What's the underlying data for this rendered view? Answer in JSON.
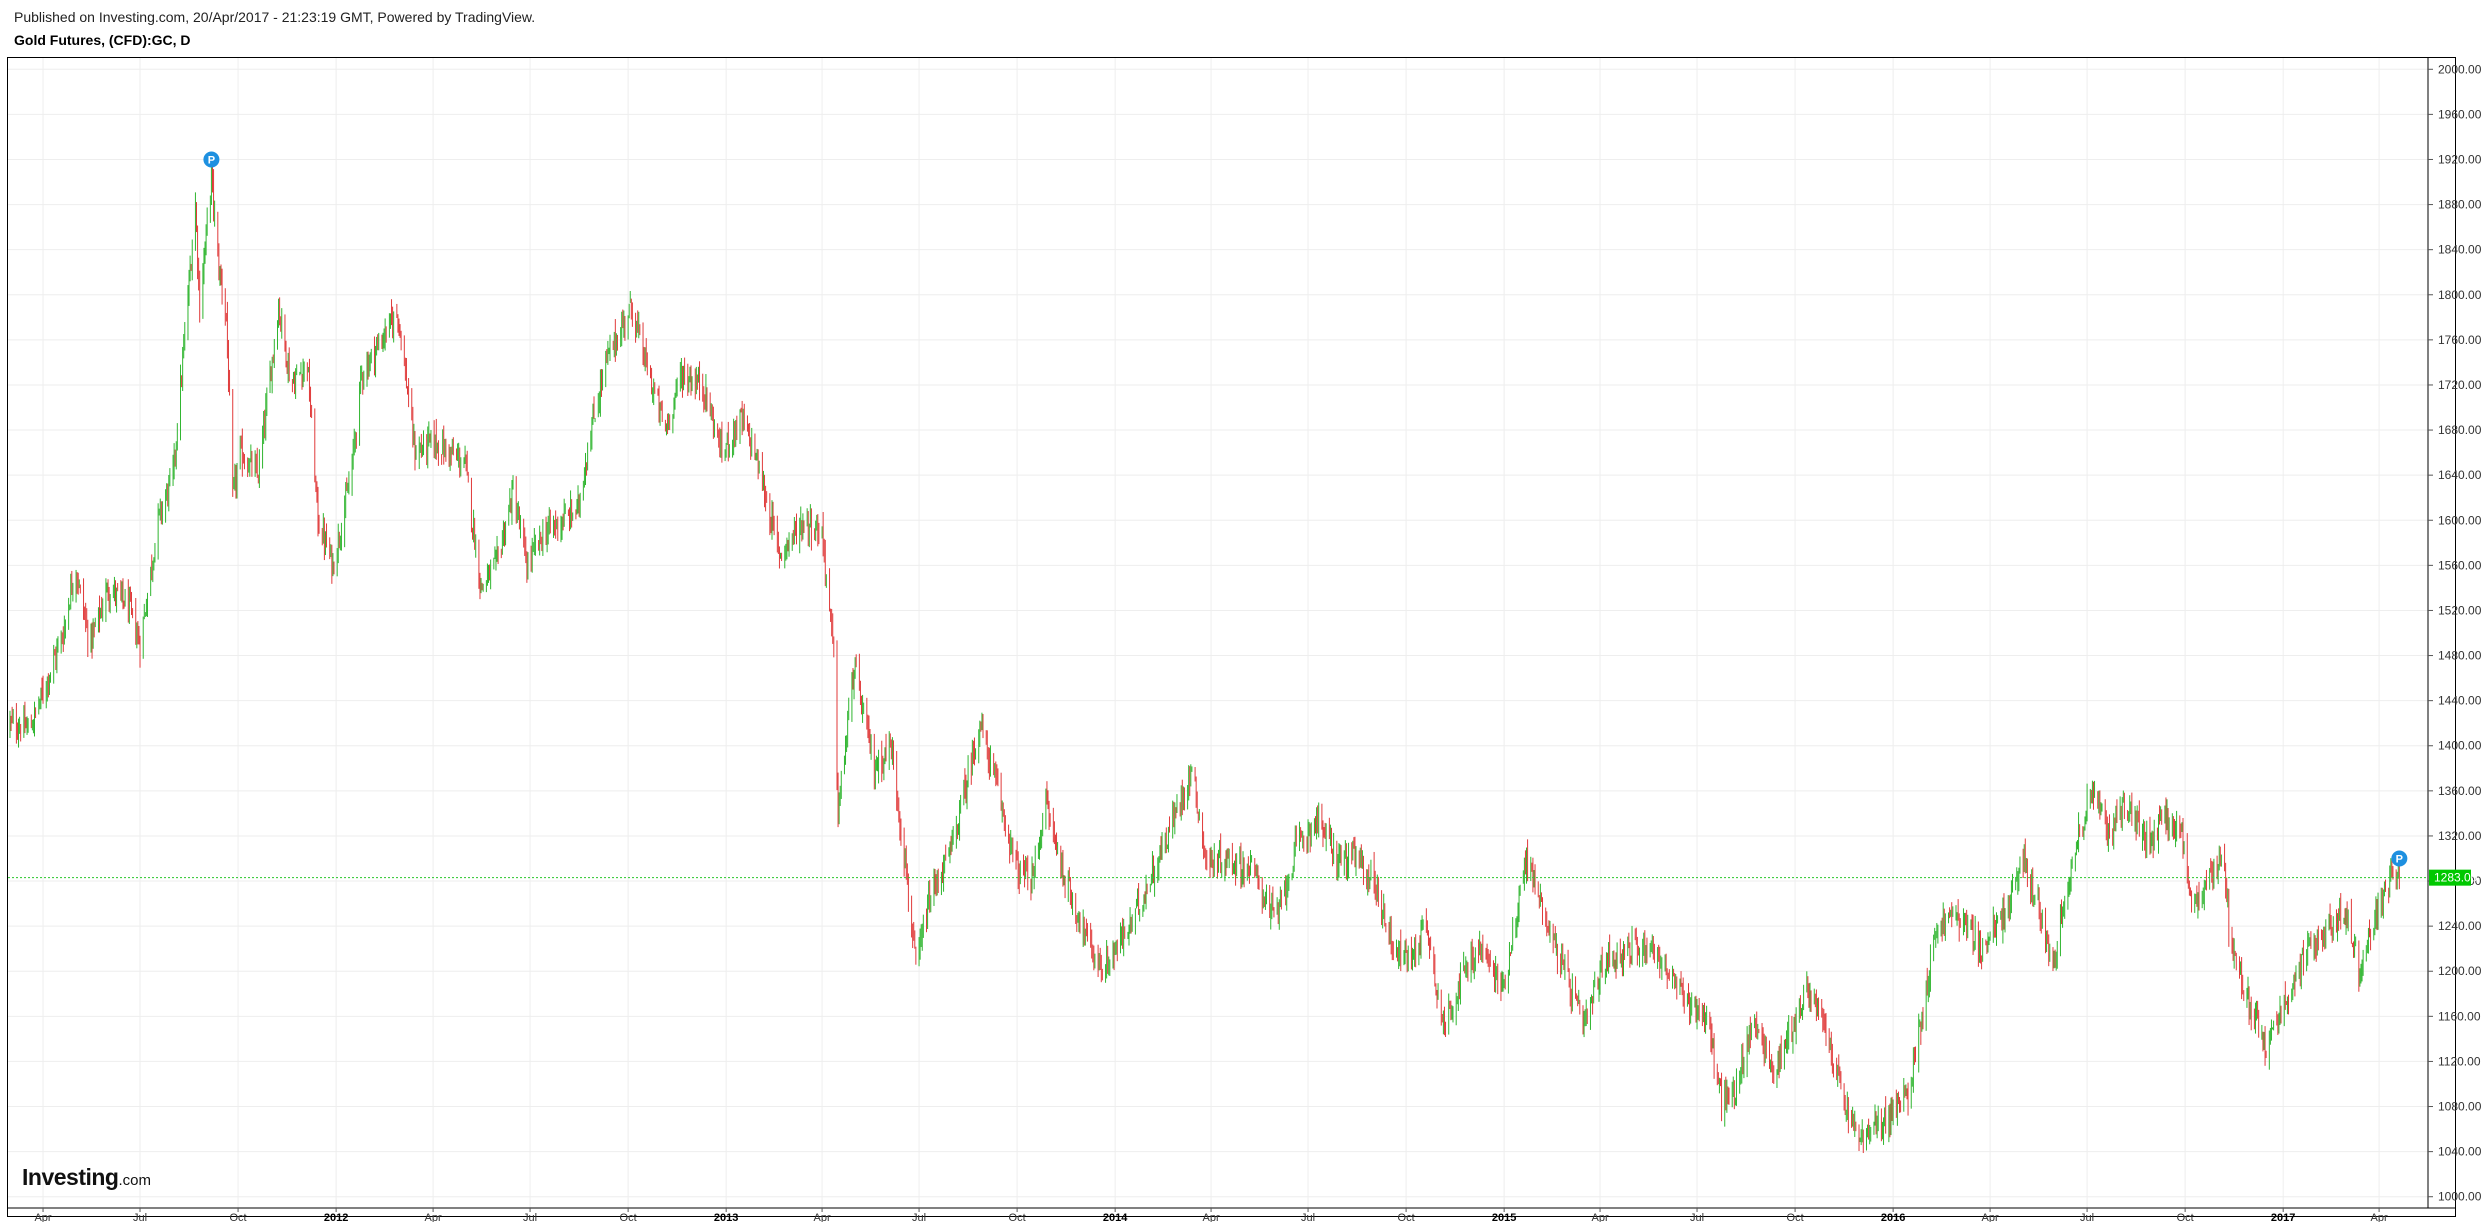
{
  "header": {
    "published": "Published on Investing.com, 20/Apr/2017 - 21:23:19 GMT, Powered by TradingView.",
    "title": "Gold Futures, (CFD):GC, D"
  },
  "logo": {
    "brand": "Investing",
    "domain": ".com"
  },
  "colors": {
    "up": "#2fb52f",
    "down": "#e03a3a",
    "last_line": "#29c629",
    "last_tag": "#00c800",
    "marker": "#1e90e0",
    "grid": "#eeeeee",
    "axis_text": "#333333"
  },
  "chart_data": {
    "type": "line",
    "style": "ohlc-bars",
    "title": "Gold Futures, (CFD):GC, D",
    "xlabel": "",
    "ylabel": "",
    "ylim": [
      990,
      2010
    ],
    "xlim": [
      "2011-03-01",
      "2017-04-30"
    ],
    "grid": true,
    "y_ticks": [
      "1000.00",
      "1040.00",
      "1080.00",
      "1120.00",
      "1160.00",
      "1200.00",
      "1240.00",
      "1280.00",
      "1320.00",
      "1360.00",
      "1400.00",
      "1440.00",
      "1480.00",
      "1520.00",
      "1560.00",
      "1600.00",
      "1640.00",
      "1680.00",
      "1720.00",
      "1760.00",
      "1800.00",
      "1840.00",
      "1880.00",
      "1920.00",
      "1960.00",
      "2000.00"
    ],
    "x_ticks": [
      {
        "date": "2011-04-01",
        "label": "Apr",
        "bold": false
      },
      {
        "date": "2011-07-01",
        "label": "Jul",
        "bold": false
      },
      {
        "date": "2011-10-01",
        "label": "Oct",
        "bold": false
      },
      {
        "date": "2012-01-01",
        "label": "2012",
        "bold": true
      },
      {
        "date": "2012-04-01",
        "label": "Apr",
        "bold": false
      },
      {
        "date": "2012-07-01",
        "label": "Jul",
        "bold": false
      },
      {
        "date": "2012-10-01",
        "label": "Oct",
        "bold": false
      },
      {
        "date": "2013-01-01",
        "label": "2013",
        "bold": true
      },
      {
        "date": "2013-04-01",
        "label": "Apr",
        "bold": false
      },
      {
        "date": "2013-07-01",
        "label": "Jul",
        "bold": false
      },
      {
        "date": "2013-10-01",
        "label": "Oct",
        "bold": false
      },
      {
        "date": "2014-01-01",
        "label": "2014",
        "bold": true
      },
      {
        "date": "2014-04-01",
        "label": "Apr",
        "bold": false
      },
      {
        "date": "2014-07-01",
        "label": "Jul",
        "bold": false
      },
      {
        "date": "2014-10-01",
        "label": "Oct",
        "bold": false
      },
      {
        "date": "2015-01-01",
        "label": "2015",
        "bold": true
      },
      {
        "date": "2015-04-01",
        "label": "Apr",
        "bold": false
      },
      {
        "date": "2015-07-01",
        "label": "Jul",
        "bold": false
      },
      {
        "date": "2015-10-01",
        "label": "Oct",
        "bold": false
      },
      {
        "date": "2016-01-01",
        "label": "2016",
        "bold": true
      },
      {
        "date": "2016-04-01",
        "label": "Apr",
        "bold": false
      },
      {
        "date": "2016-07-01",
        "label": "Jul",
        "bold": false
      },
      {
        "date": "2016-10-01",
        "label": "Oct",
        "bold": false
      },
      {
        "date": "2017-01-01",
        "label": "2017",
        "bold": true
      },
      {
        "date": "2017-04-01",
        "label": "Apr",
        "bold": false
      }
    ],
    "series": [
      {
        "approx_close": [
          [
            "2011-03-01",
            1420
          ],
          [
            "2011-03-20",
            1415
          ],
          [
            "2011-04-20",
            1500
          ],
          [
            "2011-05-01",
            1560
          ],
          [
            "2011-05-15",
            1490
          ],
          [
            "2011-06-01",
            1540
          ],
          [
            "2011-06-20",
            1525
          ],
          [
            "2011-07-01",
            1490
          ],
          [
            "2011-07-18",
            1600
          ],
          [
            "2011-08-01",
            1640
          ],
          [
            "2011-08-10",
            1740
          ],
          [
            "2011-08-22",
            1880
          ],
          [
            "2011-08-26",
            1790
          ],
          [
            "2011-09-06",
            1905
          ],
          [
            "2011-09-12",
            1830
          ],
          [
            "2011-09-20",
            1780
          ],
          [
            "2011-09-26",
            1620
          ],
          [
            "2011-10-03",
            1660
          ],
          [
            "2011-10-20",
            1640
          ],
          [
            "2011-11-08",
            1790
          ],
          [
            "2011-11-20",
            1720
          ],
          [
            "2011-12-05",
            1740
          ],
          [
            "2011-12-15",
            1600
          ],
          [
            "2011-12-29",
            1560
          ],
          [
            "2012-01-15",
            1640
          ],
          [
            "2012-01-25",
            1730
          ],
          [
            "2012-02-28",
            1785
          ],
          [
            "2012-03-15",
            1660
          ],
          [
            "2012-04-01",
            1670
          ],
          [
            "2012-05-01",
            1650
          ],
          [
            "2012-05-16",
            1540
          ],
          [
            "2012-05-30",
            1560
          ],
          [
            "2012-06-15",
            1625
          ],
          [
            "2012-06-28",
            1560
          ],
          [
            "2012-07-15",
            1590
          ],
          [
            "2012-08-01",
            1600
          ],
          [
            "2012-08-15",
            1610
          ],
          [
            "2012-08-25",
            1670
          ],
          [
            "2012-09-10",
            1740
          ],
          [
            "2012-10-04",
            1790
          ],
          [
            "2012-10-20",
            1730
          ],
          [
            "2012-11-05",
            1680
          ],
          [
            "2012-11-20",
            1730
          ],
          [
            "2012-12-10",
            1720
          ],
          [
            "2012-12-28",
            1660
          ],
          [
            "2013-01-15",
            1690
          ],
          [
            "2013-01-28",
            1660
          ],
          [
            "2013-02-20",
            1570
          ],
          [
            "2013-03-15",
            1600
          ],
          [
            "2013-04-01",
            1590
          ],
          [
            "2013-04-12",
            1480
          ],
          [
            "2013-04-16",
            1340
          ],
          [
            "2013-05-01",
            1470
          ],
          [
            "2013-05-20",
            1380
          ],
          [
            "2013-06-05",
            1400
          ],
          [
            "2013-06-20",
            1280
          ],
          [
            "2013-06-28",
            1200
          ],
          [
            "2013-07-10",
            1260
          ],
          [
            "2013-08-01",
            1310
          ],
          [
            "2013-08-27",
            1420
          ],
          [
            "2013-09-10",
            1370
          ],
          [
            "2013-10-01",
            1290
          ],
          [
            "2013-10-15",
            1280
          ],
          [
            "2013-10-28",
            1350
          ],
          [
            "2013-11-15",
            1280
          ],
          [
            "2013-12-05",
            1230
          ],
          [
            "2013-12-20",
            1200
          ],
          [
            "2014-01-15",
            1240
          ],
          [
            "2014-02-15",
            1310
          ],
          [
            "2014-03-14",
            1380
          ],
          [
            "2014-03-28",
            1295
          ],
          [
            "2014-04-15",
            1300
          ],
          [
            "2014-05-10",
            1290
          ],
          [
            "2014-06-01",
            1245
          ],
          [
            "2014-06-20",
            1310
          ],
          [
            "2014-07-10",
            1335
          ],
          [
            "2014-07-28",
            1300
          ],
          [
            "2014-08-15",
            1300
          ],
          [
            "2014-09-01",
            1280
          ],
          [
            "2014-09-20",
            1220
          ],
          [
            "2014-10-05",
            1210
          ],
          [
            "2014-10-20",
            1245
          ],
          [
            "2014-11-05",
            1150
          ],
          [
            "2014-11-20",
            1190
          ],
          [
            "2014-12-10",
            1220
          ],
          [
            "2014-12-31",
            1185
          ],
          [
            "2015-01-22",
            1300
          ],
          [
            "2015-02-15",
            1230
          ],
          [
            "2015-03-17",
            1150
          ],
          [
            "2015-04-05",
            1210
          ],
          [
            "2015-05-18",
            1225
          ],
          [
            "2015-06-15",
            1180
          ],
          [
            "2015-07-10",
            1160
          ],
          [
            "2015-07-24",
            1085
          ],
          [
            "2015-08-05",
            1090
          ],
          [
            "2015-08-24",
            1160
          ],
          [
            "2015-09-10",
            1110
          ],
          [
            "2015-10-14",
            1185
          ],
          [
            "2015-11-01",
            1140
          ],
          [
            "2015-11-20",
            1070
          ],
          [
            "2015-12-03",
            1050
          ],
          [
            "2015-12-20",
            1065
          ],
          [
            "2016-01-15",
            1090
          ],
          [
            "2016-02-11",
            1240
          ],
          [
            "2016-03-01",
            1250
          ],
          [
            "2016-03-25",
            1220
          ],
          [
            "2016-04-20",
            1260
          ],
          [
            "2016-05-02",
            1300
          ],
          [
            "2016-05-30",
            1210
          ],
          [
            "2016-06-15",
            1290
          ],
          [
            "2016-07-06",
            1365
          ],
          [
            "2016-07-20",
            1320
          ],
          [
            "2016-08-05",
            1350
          ],
          [
            "2016-08-30",
            1310
          ],
          [
            "2016-09-10",
            1340
          ],
          [
            "2016-09-28",
            1320
          ],
          [
            "2016-10-05",
            1260
          ],
          [
            "2016-10-20",
            1270
          ],
          [
            "2016-11-05",
            1310
          ],
          [
            "2016-11-12",
            1230
          ],
          [
            "2016-12-01",
            1170
          ],
          [
            "2016-12-15",
            1130
          ],
          [
            "2017-01-05",
            1180
          ],
          [
            "2017-01-20",
            1210
          ],
          [
            "2017-02-15",
            1245
          ],
          [
            "2017-03-01",
            1250
          ],
          [
            "2017-03-14",
            1200
          ],
          [
            "2017-03-30",
            1250
          ],
          [
            "2017-04-12",
            1285
          ],
          [
            "2017-04-20",
            1283
          ]
        ]
      }
    ],
    "last_price": "1283.00",
    "markers": [
      {
        "date": "2011-09-06",
        "value": 1920,
        "label": "P"
      },
      {
        "date": "2017-04-20",
        "value": 1300,
        "label": "P"
      }
    ]
  }
}
